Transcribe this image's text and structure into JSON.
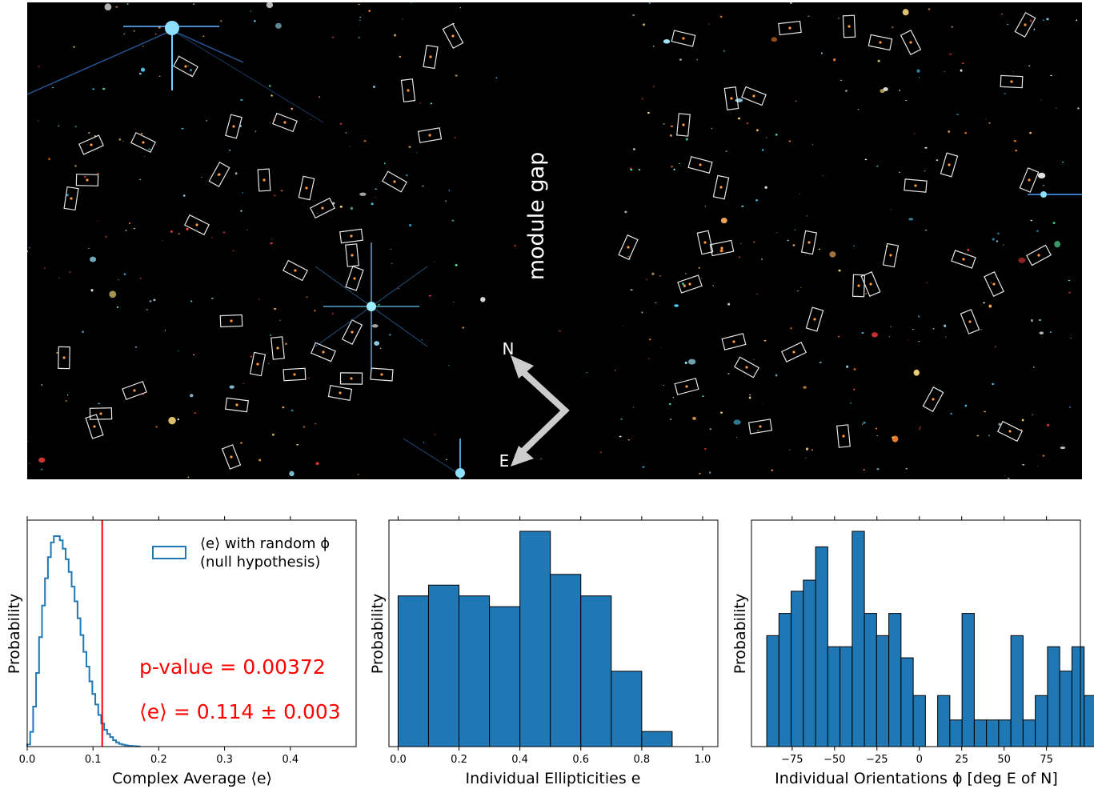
{
  "image_panel": {
    "gap_label": "module gap",
    "compass": {
      "north_label": "N",
      "east_label": "E"
    }
  },
  "colors": {
    "hist_fill": "#1f77b4",
    "hist_edge": "#000000",
    "threshold": "#ff0000",
    "text_red": "#ff0000",
    "sky_background": "#000000",
    "box_outline": "#e6e6e6",
    "arrow": "#cccccc"
  },
  "chart_data": [
    {
      "type": "line",
      "variant": "step-histogram",
      "xlabel": "Complex Average ⟨e⟩",
      "ylabel": "Probability",
      "xlim": [
        0,
        0.5
      ],
      "x_ticks": [
        0.0,
        0.1,
        0.2,
        0.3,
        0.4
      ],
      "x_tick_labels": [
        "0.0",
        "0.1",
        "0.2",
        "0.3",
        "0.4"
      ],
      "y_ticks_shown": false,
      "series": [
        {
          "name": "⟨e⟩ with random ϕ (null hypothesis)",
          "style": "step",
          "bin_width": 0.0045,
          "x_start": 0.0,
          "values": [
            0.01,
            0.07,
            0.19,
            0.35,
            0.52,
            0.67,
            0.8,
            0.9,
            0.97,
            1.0,
            1.0,
            0.98,
            0.94,
            0.89,
            0.83,
            0.76,
            0.69,
            0.61,
            0.53,
            0.45,
            0.38,
            0.31,
            0.25,
            0.2,
            0.15,
            0.11,
            0.08,
            0.06,
            0.045,
            0.03,
            0.02,
            0.013,
            0.009,
            0.006,
            0.004,
            0.003,
            0.002,
            0.001
          ]
        }
      ],
      "threshold_line": {
        "x": 0.114
      },
      "legend": {
        "position": "top-right",
        "line1": "⟨e⟩ with random ϕ",
        "line2": "(null hypothesis)"
      },
      "annotations": {
        "pvalue": "p-value = 0.00372",
        "mean": "⟨e⟩ = 0.114 ± 0.003"
      }
    },
    {
      "type": "bar",
      "variant": "histogram",
      "xlabel": "Individual Ellipticities e",
      "ylabel": "Probability",
      "xlim": [
        -0.03,
        1.05
      ],
      "x_ticks": [
        0.0,
        0.2,
        0.4,
        0.6,
        0.8,
        1.0
      ],
      "x_tick_labels": [
        "0.0",
        "0.2",
        "0.4",
        "0.6",
        "0.8",
        "1.0"
      ],
      "y_ticks_shown": false,
      "bin_edges": [
        0.0,
        0.1,
        0.2,
        0.3,
        0.4,
        0.5,
        0.6,
        0.7,
        0.8,
        0.9
      ],
      "values": [
        7,
        7.5,
        7,
        6.5,
        10,
        8,
        7,
        3.5,
        0.7
      ]
    },
    {
      "type": "bar",
      "variant": "histogram",
      "xlabel": "Individual Orientations ϕ [deg E of N]",
      "ylabel": "Probability",
      "xlim": [
        -99,
        95
      ],
      "x_ticks": [
        -75,
        -50,
        -25,
        0,
        25,
        50,
        75
      ],
      "x_tick_labels": [
        "−75",
        "−50",
        "−25",
        "0",
        "25",
        "50",
        "75"
      ],
      "y_ticks_shown": false,
      "bin_start": -90,
      "bin_width": 7.2,
      "values": [
        5,
        6,
        7,
        7.5,
        9,
        4.5,
        4.5,
        9.7,
        6,
        5,
        6,
        4,
        2.3,
        0,
        2.3,
        1.2,
        6,
        1.2,
        1.2,
        1.2,
        5,
        1.2,
        2.3,
        4.5,
        3.4,
        4.5,
        2.3
      ]
    }
  ]
}
